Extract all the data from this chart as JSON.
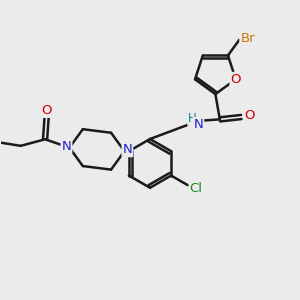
{
  "bg_color": "#ebebeb",
  "bond_color": "#1a1a1a",
  "bond_width": 1.8,
  "atom_colors": {
    "N": "#2020cc",
    "O": "#cc0000",
    "Br": "#cc7700",
    "Cl": "#228822",
    "NH": "#008888"
  },
  "font_size": 8.5,
  "fig_width": 3.0,
  "fig_height": 3.0,
  "xlim": [
    0,
    10
  ],
  "ylim": [
    0,
    10
  ]
}
